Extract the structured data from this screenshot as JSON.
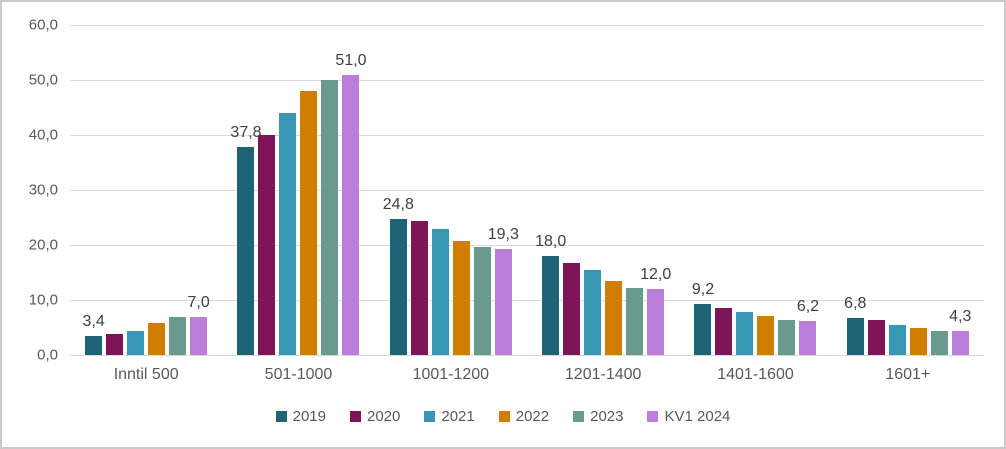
{
  "chart_data": {
    "type": "bar",
    "title": "",
    "xlabel": "",
    "ylabel": "",
    "ylim": [
      0,
      60
    ],
    "grid": true,
    "legend_position": "bottom",
    "y_ticks": [
      {
        "value": 60,
        "label": "60,0"
      },
      {
        "value": 50,
        "label": "50,0"
      },
      {
        "value": 40,
        "label": "40,0"
      },
      {
        "value": 30,
        "label": "30,0"
      },
      {
        "value": 20,
        "label": "20,0"
      },
      {
        "value": 10,
        "label": "10,0"
      },
      {
        "value": 0,
        "label": "0,0"
      }
    ],
    "categories": [
      "Inntil 500",
      "501-1000",
      "1001-1200",
      "1201-1400",
      "1401-1600",
      "1601+"
    ],
    "series": [
      {
        "name": "2019",
        "color": "#1f6476",
        "values": [
          3.4,
          37.8,
          24.8,
          18.0,
          9.2,
          6.8
        ]
      },
      {
        "name": "2020",
        "color": "#7d1558",
        "values": [
          3.8,
          40.0,
          24.4,
          16.8,
          8.5,
          6.3
        ]
      },
      {
        "name": "2021",
        "color": "#3897b5",
        "values": [
          4.4,
          44.0,
          23.0,
          15.4,
          7.8,
          5.5
        ]
      },
      {
        "name": "2022",
        "color": "#d07d00",
        "values": [
          5.8,
          48.0,
          20.8,
          13.4,
          7.1,
          4.9
        ]
      },
      {
        "name": "2023",
        "color": "#6a9a8e",
        "values": [
          7.0,
          50.0,
          19.6,
          12.2,
          6.4,
          4.4
        ]
      },
      {
        "name": "KV1 2024",
        "color": "#bb7edb",
        "values": [
          7.0,
          51.0,
          19.3,
          12.0,
          6.2,
          4.3
        ]
      }
    ],
    "data_labels": {
      "labeled_series_first": "2019",
      "labeled_series_last": "KV1 2024",
      "first_series_labels": [
        "3,4",
        "37,8",
        "24,8",
        "18,0",
        "9,2",
        "6,8"
      ],
      "last_series_labels": [
        "7,0",
        "51,0",
        "19,3",
        "12,0",
        "6,2",
        "4,3"
      ]
    },
    "colors": {
      "gridline": "#d9d9d9",
      "axis_text": "#595959",
      "data_label_text": "#404040",
      "frame_border": "#c9c9c9",
      "background": "#ffffff"
    }
  }
}
